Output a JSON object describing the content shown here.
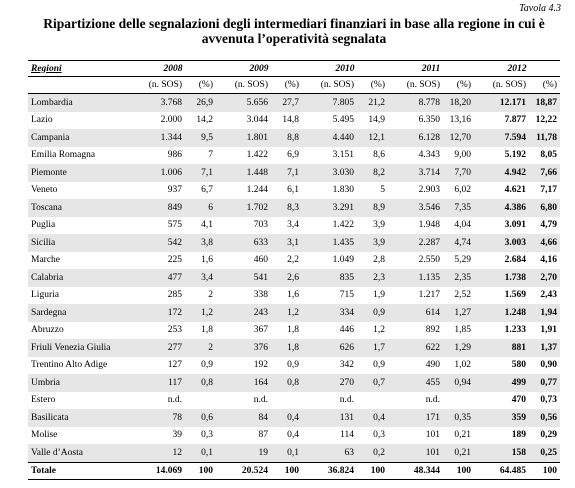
{
  "header": {
    "label": "Tavola 4.3",
    "title": "Ripartizione delle segnalazioni degli intermediari finanziari in base alla regione in cui è avvenuta l’operatività segnalata"
  },
  "table": {
    "columns": [
      "Regioni",
      "2008",
      "2009",
      "2010",
      "2011",
      "2012"
    ],
    "subcolumns": [
      "(n. SOS)",
      "(%)"
    ],
    "rows": [
      [
        "Lombardia",
        "3.768",
        "26,9",
        "5.656",
        "27,7",
        "7.805",
        "21,2",
        "8.778",
        "18,20",
        "12.171",
        "18,87"
      ],
      [
        "Lazio",
        "2.000",
        "14,2",
        "3.044",
        "14,8",
        "5.495",
        "14,9",
        "6.350",
        "13,16",
        "7.877",
        "12,22"
      ],
      [
        "Campania",
        "1.344",
        "9,5",
        "1.801",
        "8,8",
        "4.440",
        "12,1",
        "6.128",
        "12,70",
        "7.594",
        "11,78"
      ],
      [
        "Emilia Romagna",
        "986",
        "7",
        "1.422",
        "6,9",
        "3.151",
        "8,6",
        "4.343",
        "9,00",
        "5.192",
        "8,05"
      ],
      [
        "Piemonte",
        "1.006",
        "7,1",
        "1.448",
        "7,1",
        "3.030",
        "8,2",
        "3.714",
        "7,70",
        "4.942",
        "7,66"
      ],
      [
        "Veneto",
        "937",
        "6,7",
        "1.244",
        "6,1",
        "1.830",
        "5",
        "2.903",
        "6,02",
        "4.621",
        "7,17"
      ],
      [
        "Toscana",
        "849",
        "6",
        "1.702",
        "8,3",
        "3.291",
        "8,9",
        "3.546",
        "7,35",
        "4.386",
        "6,80"
      ],
      [
        "Puglia",
        "575",
        "4,1",
        "703",
        "3,4",
        "1.422",
        "3,9",
        "1.948",
        "4,04",
        "3.091",
        "4,79"
      ],
      [
        "Sicilia",
        "542",
        "3,8",
        "633",
        "3,1",
        "1.435",
        "3,9",
        "2.287",
        "4,74",
        "3.003",
        "4,66"
      ],
      [
        "Marche",
        "225",
        "1,6",
        "460",
        "2,2",
        "1.049",
        "2,8",
        "2.550",
        "5,29",
        "2.684",
        "4,16"
      ],
      [
        "Calabria",
        "477",
        "3,4",
        "541",
        "2,6",
        "835",
        "2,3",
        "1.135",
        "2,35",
        "1.738",
        "2,70"
      ],
      [
        "Liguria",
        "285",
        "2",
        "338",
        "1,6",
        "715",
        "1,9",
        "1.217",
        "2,52",
        "1.569",
        "2,43"
      ],
      [
        "Sardegna",
        "172",
        "1,2",
        "243",
        "1,2",
        "334",
        "0,9",
        "614",
        "1,27",
        "1.248",
        "1,94"
      ],
      [
        "Abruzzo",
        "253",
        "1,8",
        "367",
        "1,8",
        "446",
        "1,2",
        "892",
        "1,85",
        "1.233",
        "1,91"
      ],
      [
        "Friuli Venezia Giulia",
        "277",
        "2",
        "376",
        "1,8",
        "626",
        "1,7",
        "622",
        "1,29",
        "881",
        "1,37"
      ],
      [
        "Trentino Alto Adige",
        "127",
        "0,9",
        "192",
        "0,9",
        "342",
        "0,9",
        "490",
        "1,02",
        "580",
        "0,90"
      ],
      [
        "Umbria",
        "117",
        "0,8",
        "164",
        "0,8",
        "270",
        "0,7",
        "455",
        "0,94",
        "499",
        "0,77"
      ],
      [
        "Estero",
        "n.d.",
        null,
        "n.d.",
        null,
        "n.d.",
        null,
        "n.d.",
        null,
        "470",
        "0,73"
      ],
      [
        "Basilicata",
        "78",
        "0,6",
        "84",
        "0,4",
        "131",
        "0,4",
        "171",
        "0,35",
        "359",
        "0,56"
      ],
      [
        "Molise",
        "39",
        "0,3",
        "87",
        "0,4",
        "114",
        "0,3",
        "101",
        "0,21",
        "189",
        "0,29"
      ],
      [
        "Valle d’Aosta",
        "12",
        "0,1",
        "19",
        "0,1",
        "63",
        "0,2",
        "101",
        "0,21",
        "158",
        "0,25"
      ]
    ],
    "total": [
      "Totale",
      "14.069",
      "100",
      "20.524",
      "100",
      "36.824",
      "100",
      "48.344",
      "100",
      "64.485",
      "100"
    ]
  }
}
